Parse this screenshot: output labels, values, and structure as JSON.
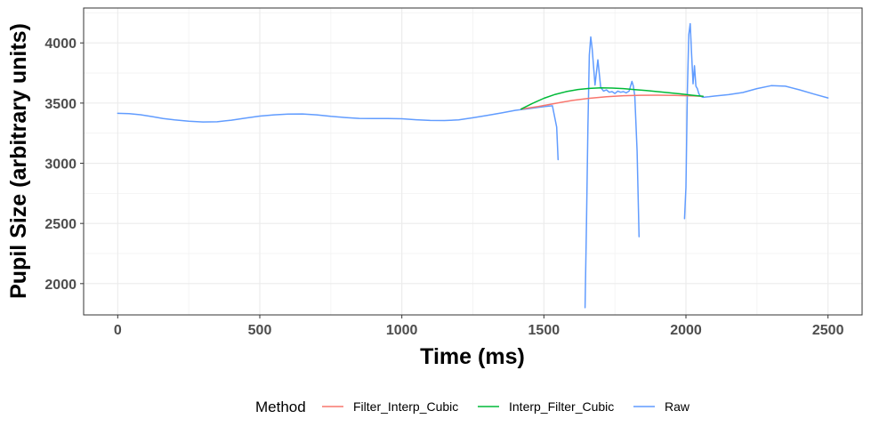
{
  "chart_data": {
    "type": "line",
    "title": "",
    "xlabel": "Time (ms)",
    "ylabel": "Pupil Size (arbitrary units)",
    "xlim": [
      -120,
      2620
    ],
    "ylim": [
      1740,
      4290
    ],
    "x_ticks": [
      0,
      500,
      1000,
      1500,
      2000,
      2500
    ],
    "x_tick_labels": [
      "0",
      "500",
      "1000",
      "1500",
      "2000",
      "2500"
    ],
    "y_ticks": [
      2000,
      2500,
      3000,
      3500,
      4000
    ],
    "y_tick_labels": [
      "2000",
      "2500",
      "3000",
      "3500",
      "4000"
    ],
    "grid": true,
    "legend_position": "bottom",
    "legend_title": "Method",
    "colors": {
      "Filter_Interp_Cubic": "#f8766d",
      "Interp_Filter_Cubic": "#00ba38",
      "Raw": "#619cff"
    },
    "series": [
      {
        "name": "Filter_Interp_Cubic",
        "x": [
          1420,
          1480,
          1540,
          1600,
          1660,
          1720,
          1780,
          1840,
          1900,
          1960,
          2020,
          2060
        ],
        "y": [
          3450,
          3472,
          3498,
          3522,
          3540,
          3553,
          3561,
          3565,
          3566,
          3564,
          3560,
          3556
        ]
      },
      {
        "name": "Interp_Filter_Cubic",
        "x": [
          1420,
          1460,
          1500,
          1540,
          1580,
          1620,
          1660,
          1700,
          1740,
          1780,
          1820,
          1860,
          1900,
          1940,
          1980,
          2020,
          2060
        ],
        "y": [
          3450,
          3498,
          3540,
          3572,
          3596,
          3613,
          3622,
          3626,
          3625,
          3620,
          3612,
          3604,
          3595,
          3586,
          3577,
          3566,
          3556
        ]
      },
      {
        "name": "Raw",
        "segments": [
          {
            "x": [
              0,
              40,
              80,
              120,
              160,
              200,
              250,
              300,
              350,
              400,
              450,
              500,
              550,
              600,
              650,
              700,
              750,
              800,
              850,
              900,
              950,
              1000,
              1050,
              1100,
              1150,
              1200,
              1250,
              1300,
              1350,
              1400,
              1450,
              1500,
              1530,
              1545,
              1550
            ],
            "y": [
              3415,
              3412,
              3403,
              3388,
              3372,
              3360,
              3350,
              3343,
              3345,
              3358,
              3375,
              3392,
              3402,
              3408,
              3410,
              3402,
              3390,
              3380,
              3373,
              3372,
              3372,
              3370,
              3362,
              3356,
              3355,
              3360,
              3378,
              3398,
              3418,
              3440,
              3455,
              3470,
              3478,
              3300,
              3030
            ]
          },
          {
            "x": [
              1645,
              1650,
              1655,
              1660,
              1665,
              1670,
              1680,
              1690,
              1700,
              1710,
              1720,
              1730,
              1740,
              1750,
              1760,
              1770,
              1780,
              1790,
              1800,
              1810,
              1815,
              1820,
              1828,
              1835
            ],
            "y": [
              1800,
              2500,
              3300,
              3900,
              4050,
              3950,
              3650,
              3860,
              3630,
              3600,
              3610,
              3590,
              3595,
              3580,
              3600,
              3590,
              3595,
              3585,
              3600,
              3680,
              3640,
              3560,
              3100,
              2390
            ]
          },
          {
            "x": [
              1995,
              2000,
              2005,
              2010,
              2015,
              2020,
              2025,
              2030,
              2035,
              2040,
              2045,
              2050,
              2060,
              2080,
              2100,
              2150,
              2200,
              2250,
              2300,
              2350,
              2400,
              2450,
              2500
            ],
            "y": [
              2540,
              2800,
              3600,
              4070,
              4160,
              3900,
              3660,
              3810,
              3640,
              3620,
              3580,
              3560,
              3548,
              3552,
              3558,
              3570,
              3588,
              3620,
              3645,
              3640,
              3610,
              3575,
              3543
            ]
          }
        ]
      }
    ]
  }
}
